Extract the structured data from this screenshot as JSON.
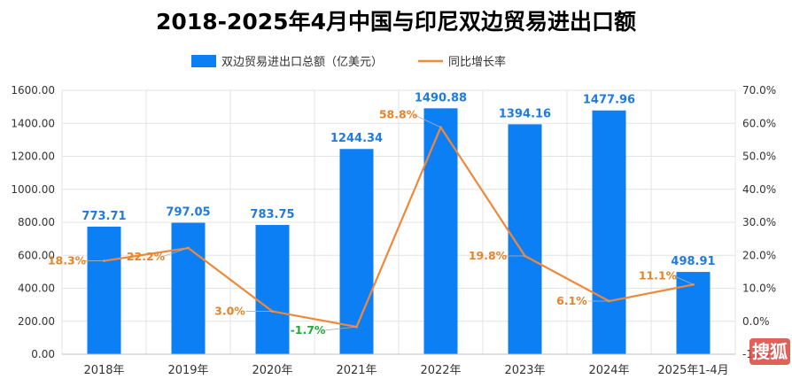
{
  "title": "2018-2025年4月中国与印尼双边贸易进出口额",
  "legend": {
    "bar": "双边贸易进出口总额（亿美元）",
    "line": "同比增长率"
  },
  "colors": {
    "bar": "#0d7ff5",
    "line": "#f0883a",
    "positive_label": "#e5832b",
    "negative_label": "#2aa63b",
    "bar_label": "#1e7be0",
    "watermark_bg": "#d9453a"
  },
  "chart_data": {
    "type": "bar+line",
    "categories": [
      "2018年",
      "2019年",
      "2020年",
      "2021年",
      "2022年",
      "2023年",
      "2024年",
      "2025年1-4月"
    ],
    "series": [
      {
        "name": "双边贸易进出口总额（亿美元）",
        "type": "bar",
        "axis": "left",
        "values": [
          773.71,
          797.05,
          783.75,
          1244.34,
          1490.88,
          1394.16,
          1477.96,
          498.91
        ],
        "labels": [
          "773.71",
          "797.05",
          "783.75",
          "1244.34",
          "1490.88",
          "1394.16",
          "1477.96",
          "498.91"
        ]
      },
      {
        "name": "同比增长率",
        "type": "line",
        "axis": "right",
        "values": [
          18.3,
          22.2,
          3.0,
          -1.7,
          58.8,
          19.8,
          6.1,
          11.1
        ],
        "labels": [
          "18.3%",
          "22.2%",
          "3.0%",
          "-1.7%",
          "58.8%",
          "19.8%",
          "6.1%",
          "11.1%"
        ]
      }
    ],
    "y_left": {
      "min": 0,
      "max": 1600,
      "step": 200,
      "ticks": [
        "0.00",
        "200.00",
        "400.00",
        "600.00",
        "800.00",
        "1000.00",
        "1200.00",
        "1400.00",
        "1600.00"
      ]
    },
    "y_right": {
      "min": -10,
      "max": 70,
      "step": 10,
      "ticks": [
        "-10.0%",
        "0.0%",
        "10.0%",
        "20.0%",
        "30.0%",
        "40.0%",
        "50.0%",
        "60.0%",
        "70.0%"
      ]
    },
    "grid": true,
    "legend_position": "top-center"
  },
  "watermark": "搜狐"
}
